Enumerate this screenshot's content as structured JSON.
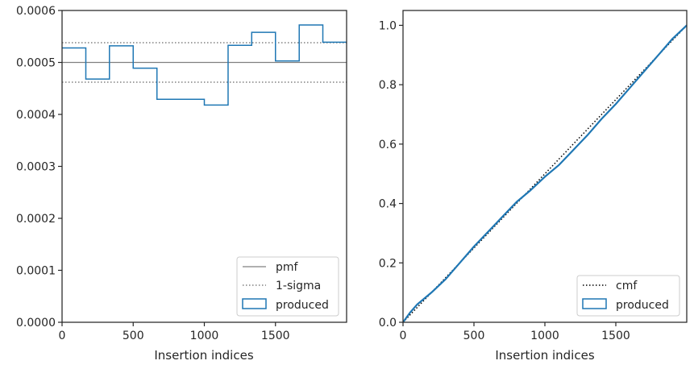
{
  "chart_data": [
    {
      "type": "line",
      "panel": "left",
      "xlabel": "Insertion indices",
      "ylabel": "",
      "xlim": [
        0,
        2000
      ],
      "ylim": [
        0,
        0.0006
      ],
      "xticks": [
        0,
        500,
        1000,
        1500
      ],
      "xtick_labels": [
        "0",
        "500",
        "1000",
        "1500"
      ],
      "yticks": [
        0,
        0.0001,
        0.0002,
        0.0003,
        0.0004,
        0.0005,
        0.0006
      ],
      "ytick_labels": [
        "0.0000",
        "0.0001",
        "0.0002",
        "0.0003",
        "0.0004",
        "0.0005",
        "0.0006"
      ],
      "legend_position": "lower-right",
      "series": [
        {
          "name": "pmf",
          "style": "solid",
          "color": "#808080",
          "y": 0.0005
        },
        {
          "name": "1-sigma",
          "style": "dotted",
          "color": "#808080",
          "y_values": [
            0.000538,
            0.000462
          ]
        },
        {
          "name": "produced",
          "style": "step",
          "color": "#1f77b4",
          "bin_edges": [
            0,
            167,
            333,
            500,
            667,
            833,
            1000,
            1167,
            1333,
            1500,
            1667,
            1833,
            2000
          ],
          "values": [
            0.000528,
            0.000468,
            0.000532,
            0.000489,
            0.000429,
            0.000429,
            0.000418,
            0.000533,
            0.000558,
            0.000503,
            0.000572,
            0.000539
          ]
        }
      ]
    },
    {
      "type": "line",
      "panel": "right",
      "xlabel": "Insertion indices",
      "ylabel": "",
      "xlim": [
        0,
        2000
      ],
      "ylim": [
        0,
        1.05
      ],
      "xticks": [
        0,
        500,
        1000,
        1500
      ],
      "xtick_labels": [
        "0",
        "500",
        "1000",
        "1500"
      ],
      "yticks": [
        0,
        0.2,
        0.4,
        0.6,
        0.8,
        1.0
      ],
      "ytick_labels": [
        "0.0",
        "0.2",
        "0.4",
        "0.6",
        "0.8",
        "1.0"
      ],
      "legend_position": "lower-right",
      "series": [
        {
          "name": "cmf",
          "style": "dotted",
          "color": "#000000",
          "x": [
            0,
            2000
          ],
          "y": [
            0,
            1
          ]
        },
        {
          "name": "produced",
          "style": "line",
          "color": "#1f77b4",
          "x": [
            0,
            50,
            100,
            150,
            200,
            300,
            400,
            500,
            600,
            700,
            800,
            900,
            1000,
            1100,
            1200,
            1300,
            1400,
            1500,
            1600,
            1700,
            1800,
            1900,
            2000
          ],
          "y": [
            0,
            0.033,
            0.06,
            0.08,
            0.1,
            0.145,
            0.2,
            0.255,
            0.305,
            0.355,
            0.405,
            0.445,
            0.49,
            0.53,
            0.58,
            0.63,
            0.685,
            0.735,
            0.79,
            0.845,
            0.9,
            0.955,
            1.0
          ]
        }
      ]
    }
  ]
}
